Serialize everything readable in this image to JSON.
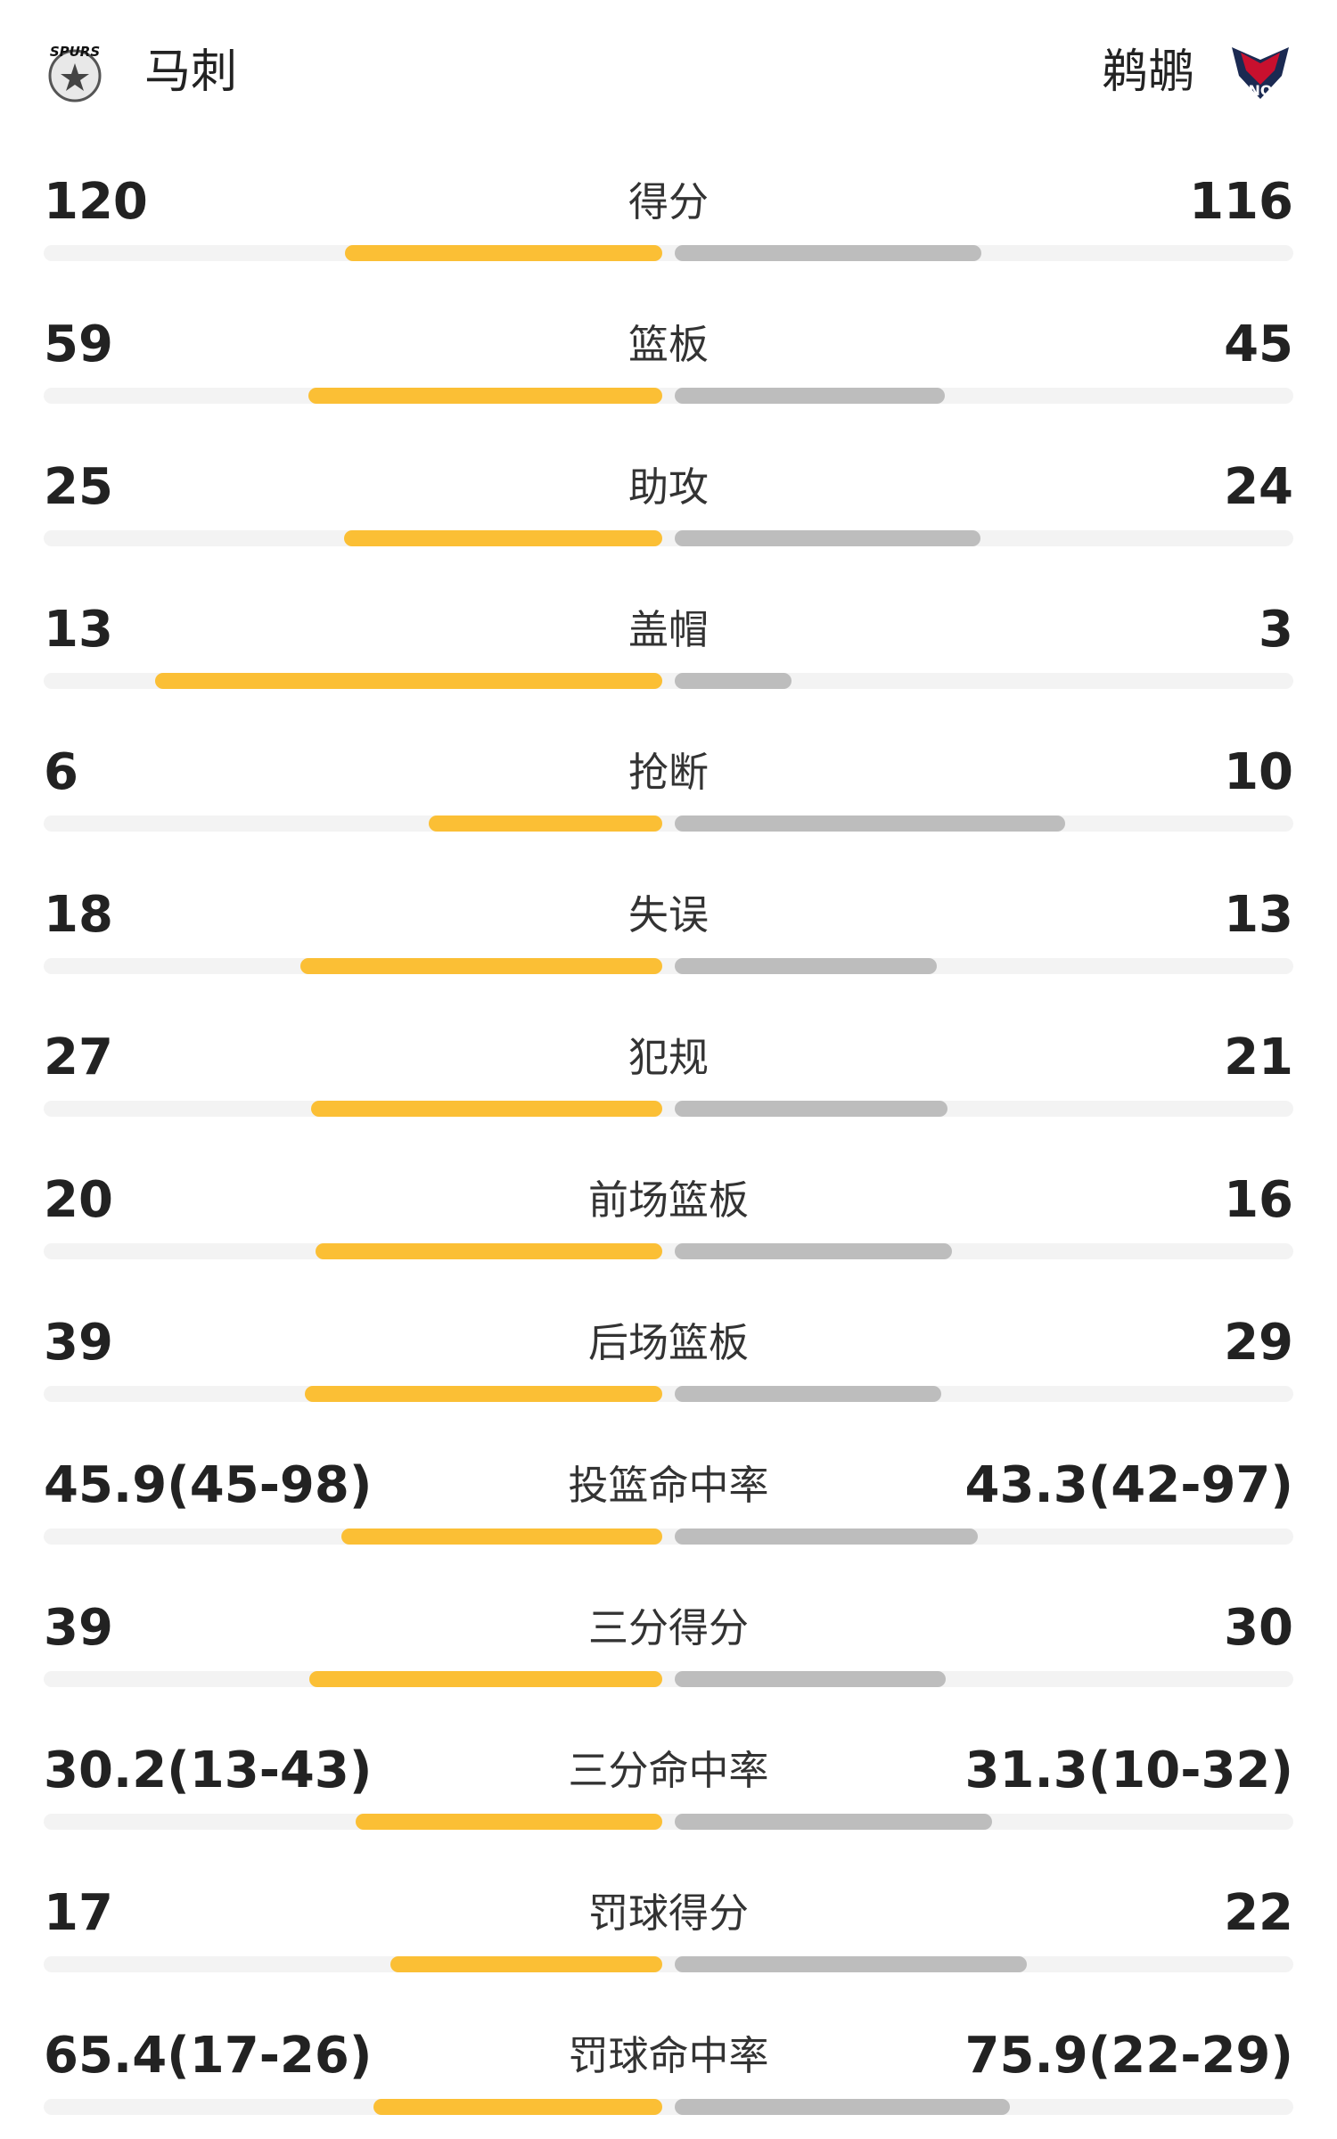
{
  "header": {
    "home": "马刺",
    "away": "鹈鹕",
    "home_logo": "SPURS",
    "away_logo": "NO"
  },
  "stats": [
    {
      "label": "得分",
      "home": "120",
      "away": "116"
    },
    {
      "label": "篮板",
      "home": "59",
      "away": "45"
    },
    {
      "label": "助攻",
      "home": "25",
      "away": "24"
    },
    {
      "label": "盖帽",
      "home": "13",
      "away": "3"
    },
    {
      "label": "抢断",
      "home": "6",
      "away": "10"
    },
    {
      "label": "失误",
      "home": "18",
      "away": "13"
    },
    {
      "label": "犯规",
      "home": "27",
      "away": "21"
    },
    {
      "label": "前场篮板",
      "home": "20",
      "away": "16"
    },
    {
      "label": "后场篮板",
      "home": "39",
      "away": "29"
    },
    {
      "label": "投篮命中率",
      "home": "45.9(45-98)",
      "away": "43.3(42-97)"
    },
    {
      "label": "三分得分",
      "home": "39",
      "away": "30"
    },
    {
      "label": "三分命中率",
      "home": "30.2(13-43)",
      "away": "31.3(10-32)"
    },
    {
      "label": "罚球得分",
      "home": "17",
      "away": "22"
    },
    {
      "label": "罚球命中率",
      "home": "65.4(17-26)",
      "away": "75.9(22-29)"
    }
  ]
}
